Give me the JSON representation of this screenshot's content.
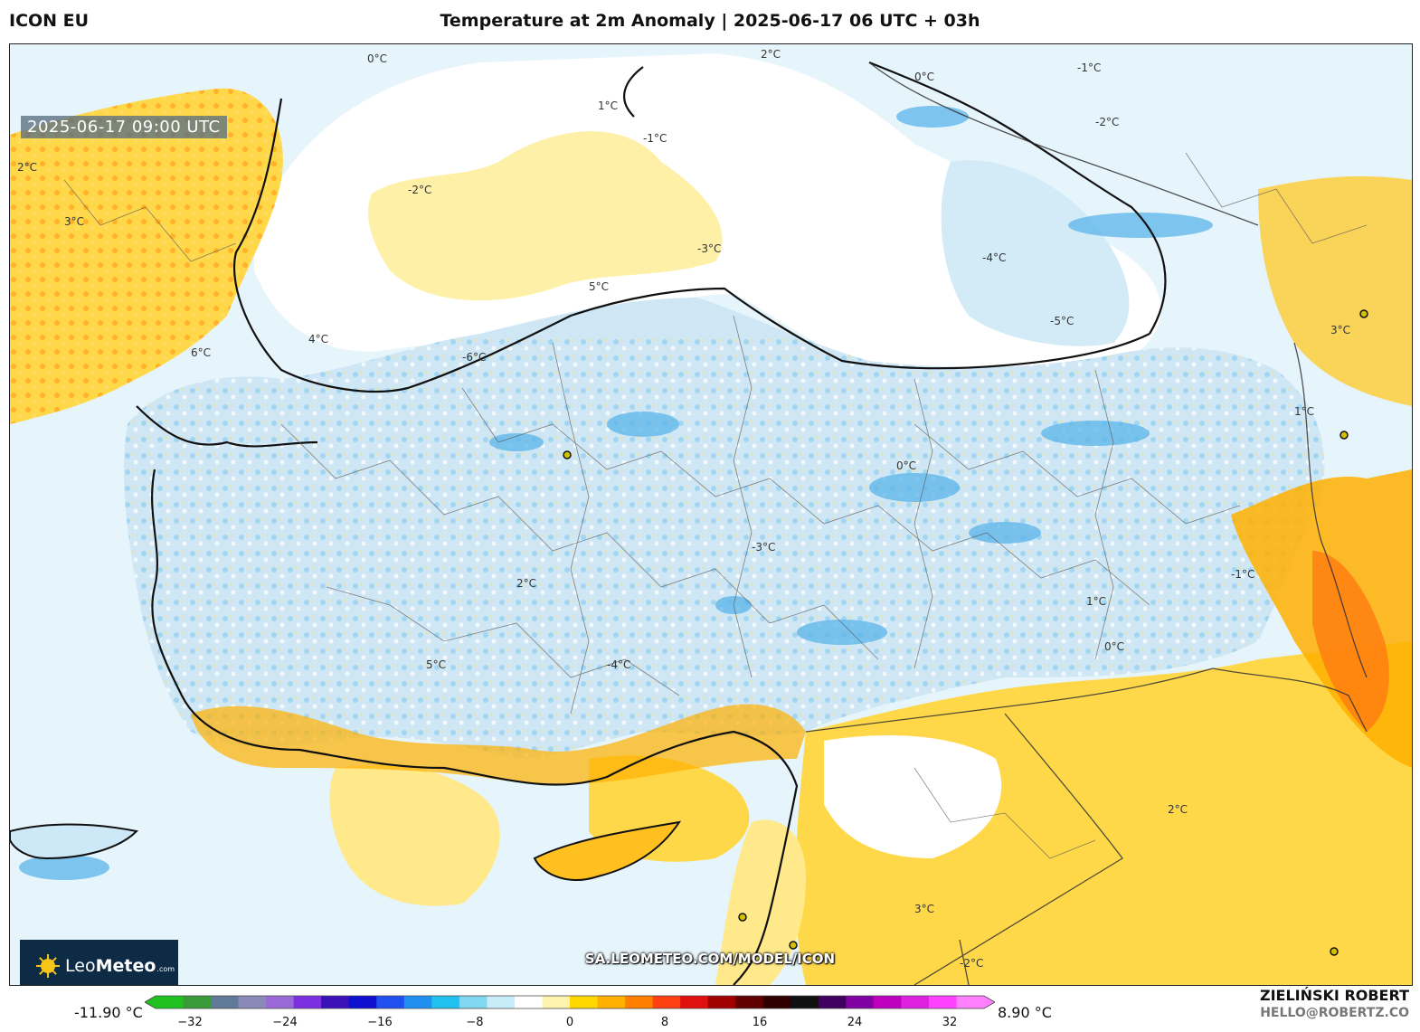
{
  "header": {
    "model": "ICON EU",
    "title": "Temperature at 2m Anomaly | 2025-06-17 06 UTC + 03h"
  },
  "map": {
    "valid_time": "2025-06-17 09:00 UTC",
    "source_url": "SA.LEOMETEO.COM/MODEL/ICON",
    "region": "Turkey / Eastern Mediterranean",
    "contour_labels": [
      "0°C",
      "1°C",
      "-1°C",
      "-2°C",
      "2°C",
      "3°C",
      "-3°C",
      "-4°C",
      "-5°C",
      "5°C",
      "-6°C",
      "6°C",
      "4°C",
      "-1°C",
      "0°C",
      "2°C",
      "-2°C",
      "3°C",
      "1°C",
      "0°C",
      "-3°C",
      "2°C",
      "5°C",
      "-4°C",
      "1°C",
      "-1°C",
      "0°C",
      "2°C",
      "3°C",
      "-2°C"
    ]
  },
  "logo": {
    "brand_bold": "Leo",
    "brand_rest": "Meteo",
    "domain": ".com"
  },
  "colorbar": {
    "min_label": "-11.90 °C",
    "max_label": "8.90 °C",
    "ticks": [
      "−32",
      "−24",
      "−16",
      "−8",
      "0",
      "8",
      "16",
      "24",
      "32"
    ],
    "stops": [
      "#20c020",
      "#3a9a3a",
      "#607a9a",
      "#8a8ab8",
      "#9a6ad8",
      "#7a30e0",
      "#3a10b8",
      "#1010d0",
      "#2050f0",
      "#2090f0",
      "#20c0f0",
      "#80d8f0",
      "#c8ecf8",
      "#ffffff",
      "#fff3b0",
      "#ffd800",
      "#ffb000",
      "#ff8000",
      "#ff4010",
      "#e01010",
      "#a00000",
      "#600000",
      "#300000",
      "#101010",
      "#400060",
      "#8000a0",
      "#c000c0",
      "#e020e0",
      "#ff40ff",
      "#ff80ff"
    ]
  },
  "credits": {
    "author": "ZIELIŃSKI ROBERT",
    "email": "HELLO@ROBERTZ.CO"
  }
}
